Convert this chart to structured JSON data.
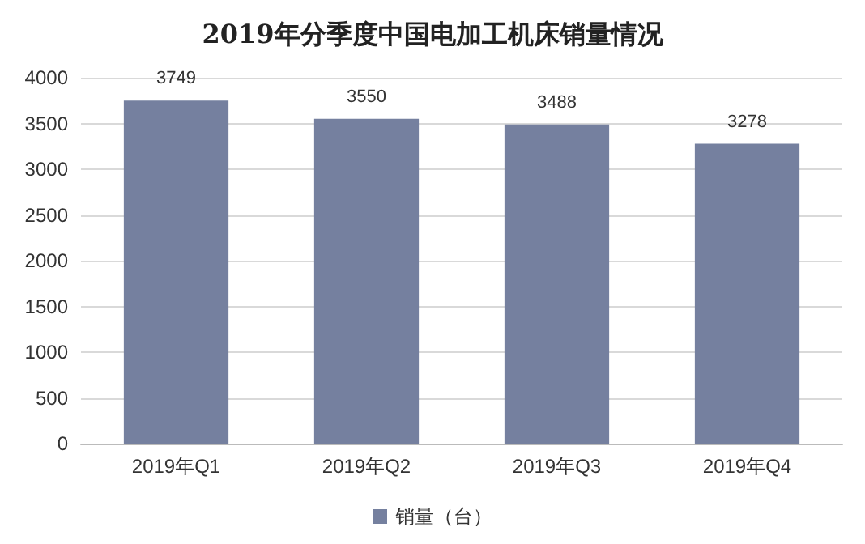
{
  "chart_data": {
    "type": "bar",
    "title": "2019年分季度中国电加工机床销量情况",
    "categories": [
      "2019年Q1",
      "2019年Q2",
      "2019年Q3",
      "2019年Q4"
    ],
    "series": [
      {
        "name": "销量（台）",
        "color": "#75809f",
        "values": [
          3749,
          3550,
          3488,
          3278
        ]
      }
    ],
    "ylim": [
      0,
      4000
    ],
    "yticks": [
      0,
      500,
      1000,
      1500,
      2000,
      2500,
      3000,
      3500,
      4000
    ],
    "grid": "y",
    "legend": "bottom",
    "data_labels": true
  }
}
